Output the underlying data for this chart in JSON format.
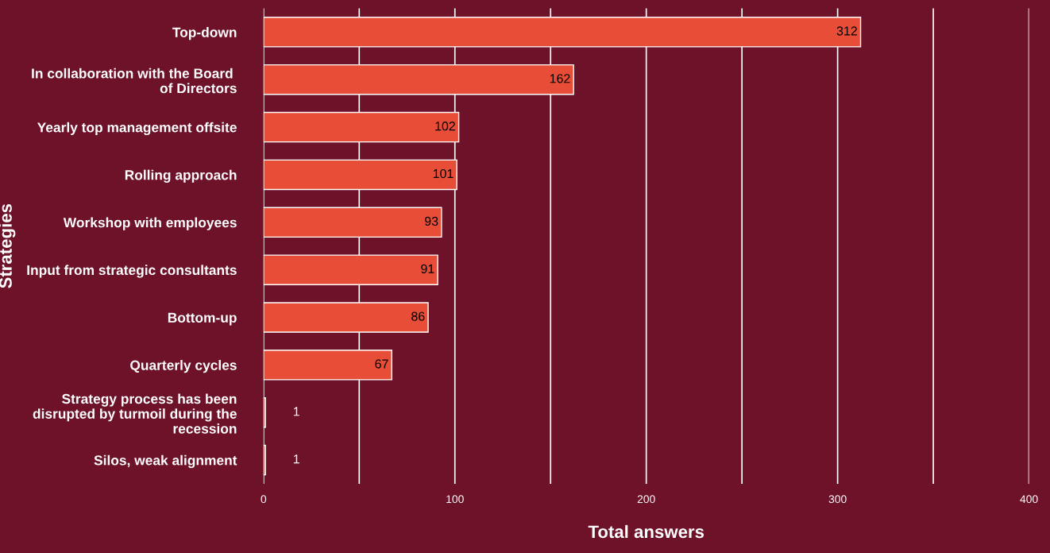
{
  "chart_data": {
    "type": "bar",
    "orientation": "horizontal",
    "categories": [
      "Top-down",
      "In collaboration with the Board \nof Directors",
      "Yearly top management offsite",
      "Rolling approach",
      "Workshop with employees",
      "Input from strategic consultants",
      "Bottom-up",
      "Quarterly cycles",
      "Strategy process has been\ndisrupted by turmoil during the\nrecession",
      "Silos, weak alignment"
    ],
    "values": [
      312,
      162,
      102,
      101,
      93,
      91,
      86,
      67,
      1,
      1
    ],
    "color": "#e84e37",
    "xlabel": "Total answers",
    "ylabel": "Strategies",
    "xlim": [
      0,
      400
    ],
    "xticks": [
      0,
      {
        "value": 50,
        "label": null
      },
      100,
      {
        "value": 150,
        "label": null
      },
      200,
      {
        "value": 250,
        "label": null
      },
      300,
      {
        "value": 350,
        "label": null
      },
      400
    ],
    "grid": "x",
    "data_labels": true
  }
}
